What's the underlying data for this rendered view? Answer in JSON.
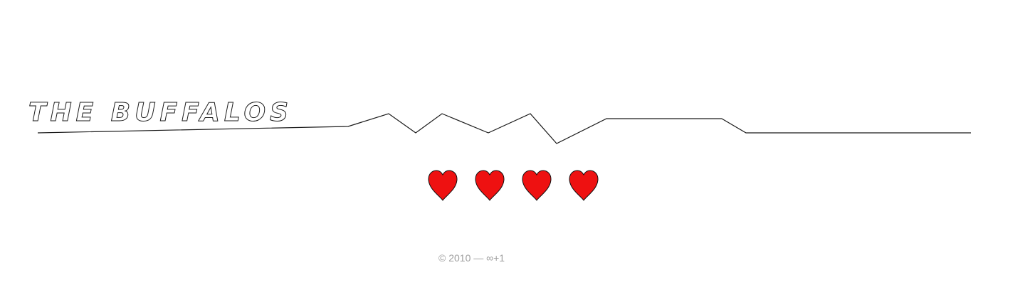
{
  "header": {
    "title": "THE BUFFALOS"
  },
  "hearts": {
    "icon": "heart-icon",
    "color": "#ee1111",
    "count": 4
  },
  "footer": {
    "copyright": "© 2010 — ∞+1"
  },
  "colors": {
    "background": "#ffffff",
    "line": "#1a1a1a",
    "footer_text": "#9e9e9e"
  }
}
